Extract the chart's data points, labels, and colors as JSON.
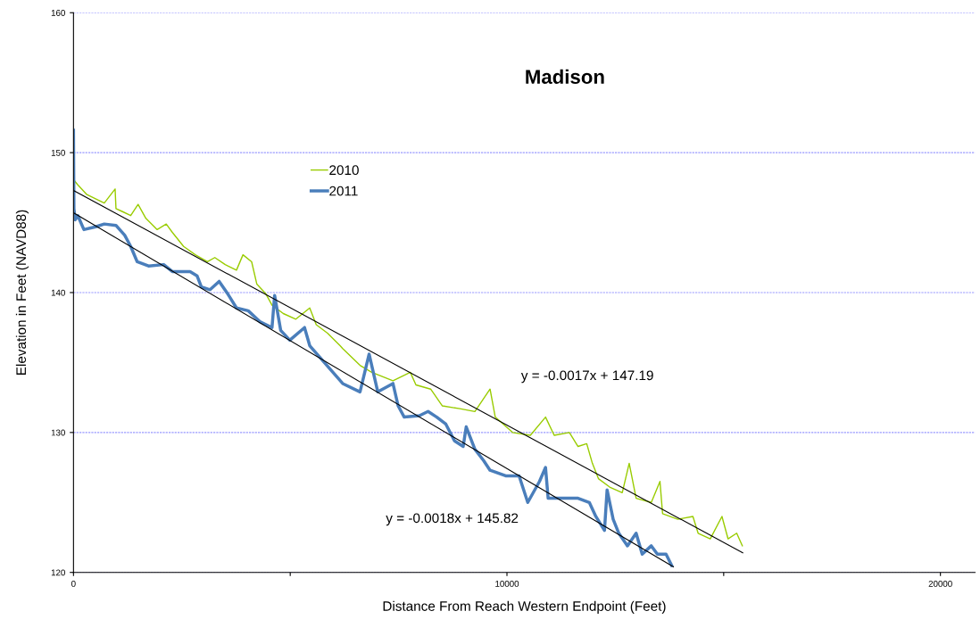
{
  "chart_data": {
    "type": "line",
    "title": "Madison",
    "xlabel": "Distance From Reach Western Endpoint (Feet)",
    "ylabel": "Elevation in Feet (NAVD88)",
    "xlim": [
      0,
      20800
    ],
    "xticks": [
      0,
      {
        "value": 5000,
        "label": null
      },
      10000,
      {
        "value": 15000,
        "label": null
      },
      20000
    ],
    "ylim": [
      120,
      160
    ],
    "yticks": [
      120,
      130,
      140,
      150,
      160
    ],
    "grid": "y",
    "legend": "top left",
    "marker": "none",
    "line_style": "solid",
    "series": [
      {
        "name": "2010",
        "color": "#99cc00",
        "x": [
          20,
          100,
          310,
          510,
          710,
          960,
          980,
          1120,
          1320,
          1490,
          1670,
          1930,
          2140,
          2280,
          2540,
          2810,
          3090,
          3260,
          3500,
          3760,
          3910,
          4110,
          4230,
          4440,
          4580,
          4840,
          5130,
          5450,
          5600,
          5860,
          6150,
          6210,
          6610,
          6880,
          7370,
          7770,
          7900,
          8240,
          8510,
          8910,
          9260,
          9610,
          9730,
          10130,
          10540,
          10890,
          11090,
          11440,
          11640,
          11840,
          11970,
          12110,
          12370,
          12660,
          12820,
          12980,
          13330,
          13530,
          13590,
          13940,
          14290,
          14410,
          14690,
          14960,
          15100,
          15300,
          15430
        ],
        "values": [
          148.0,
          147.7,
          147.0,
          146.7,
          146.4,
          147.4,
          146.0,
          145.8,
          145.5,
          146.3,
          145.3,
          144.5,
          144.9,
          144.3,
          143.3,
          142.7,
          142.2,
          142.5,
          142.0,
          141.6,
          142.7,
          142.2,
          140.6,
          139.9,
          139.1,
          138.5,
          138.1,
          138.9,
          137.7,
          137.1,
          136.2,
          136.0,
          134.8,
          134.3,
          133.7,
          134.3,
          133.4,
          133.1,
          131.9,
          131.7,
          131.5,
          133.1,
          131.1,
          130.0,
          129.8,
          131.1,
          129.8,
          130.0,
          129.0,
          129.2,
          127.8,
          126.7,
          126.1,
          125.7,
          127.8,
          125.3,
          125.0,
          126.5,
          124.2,
          123.8,
          124.0,
          122.8,
          122.4,
          124.0,
          122.4,
          122.8,
          121.9
        ]
      },
      {
        "name": "2011",
        "color": "#4a7ebb",
        "x": [
          0,
          10,
          40,
          100,
          240,
          510,
          710,
          980,
          1180,
          1320,
          1470,
          1730,
          2080,
          2280,
          2690,
          2850,
          2950,
          3150,
          3360,
          3560,
          3760,
          4030,
          4310,
          4580,
          4640,
          4780,
          4990,
          5330,
          5450,
          6210,
          6610,
          6820,
          7020,
          7370,
          7490,
          7630,
          7980,
          8180,
          8380,
          8590,
          8790,
          8990,
          9060,
          9260,
          9460,
          9610,
          9970,
          10280,
          10480,
          10750,
          10890,
          10950,
          11290,
          11640,
          11900,
          12050,
          12250,
          12310,
          12450,
          12580,
          12780,
          12980,
          13120,
          13330,
          13470,
          13670,
          13800
        ],
        "values": [
          151.6,
          146.0,
          145.2,
          145.5,
          144.5,
          144.7,
          144.9,
          144.8,
          144.1,
          143.3,
          142.2,
          141.9,
          142.0,
          141.5,
          141.5,
          141.2,
          140.4,
          140.2,
          140.8,
          139.9,
          138.9,
          138.7,
          137.9,
          137.5,
          139.8,
          137.3,
          136.6,
          137.5,
          136.2,
          133.5,
          132.9,
          135.6,
          132.9,
          133.5,
          131.9,
          131.1,
          131.2,
          131.5,
          131.1,
          130.6,
          129.4,
          129.0,
          130.4,
          128.8,
          128.0,
          127.3,
          126.9,
          126.9,
          125.0,
          126.5,
          127.5,
          125.3,
          125.3,
          125.3,
          125.0,
          124.0,
          123.0,
          125.9,
          123.8,
          122.8,
          121.9,
          122.8,
          121.3,
          121.9,
          121.3,
          121.3,
          120.5
        ]
      },
      {
        "color": "#000000",
        "x": [
          0,
          15440
        ],
        "values": [
          147.3,
          121.4
        ]
      },
      {
        "color": "#000000",
        "x": [
          0,
          13840
        ],
        "values": [
          145.7,
          120.4
        ]
      }
    ],
    "annotations": [
      "y = -0.0017x + 147.19",
      "y = -0.0018x + 145.82"
    ]
  }
}
